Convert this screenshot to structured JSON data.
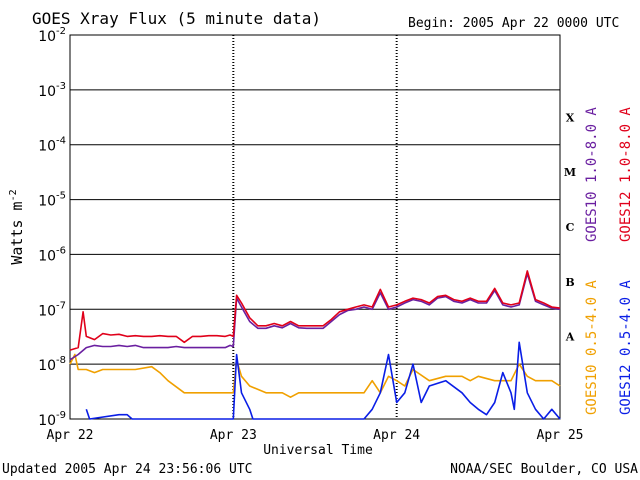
{
  "header": {
    "title": "GOES Xray Flux (5 minute data)",
    "begin": "Begin:  2005 Apr 22 0000 UTC"
  },
  "footer": {
    "updated": "Updated 2005 Apr 24 23:56:06 UTC",
    "credit": "NOAA/SEC Boulder, CO USA"
  },
  "colors": {
    "goes10_long": "#6a1fa0",
    "goes12_long": "#e0001a",
    "goes10_short": "#f0a000",
    "goes12_short": "#0a1ee6"
  },
  "chart_data": {
    "type": "line",
    "xlabel": "Universal Time",
    "ylabel": "Watts m-2",
    "x_unit": "days since 2005 Apr 22 0000 UTC",
    "xlim": [
      0,
      3
    ],
    "ylim": [
      1e-09,
      0.01
    ],
    "y_scale": "log",
    "grid": "horizontal lines at each decade; dotted vertical lines at day boundaries",
    "x_ticks": [
      "Apr 22",
      "Apr 23",
      "Apr 24",
      "Apr 25"
    ],
    "y_ticks": [
      {
        "base": "10",
        "exp": "-9"
      },
      {
        "base": "10",
        "exp": "-8"
      },
      {
        "base": "10",
        "exp": "-7"
      },
      {
        "base": "10",
        "exp": "-6"
      },
      {
        "base": "10",
        "exp": "-5"
      },
      {
        "base": "10",
        "exp": "-4"
      },
      {
        "base": "10",
        "exp": "-3"
      },
      {
        "base": "10",
        "exp": "-2"
      }
    ],
    "flare_classes": [
      "A",
      "B",
      "C",
      "M",
      "X"
    ],
    "legend_placement": "right, rotated vertical",
    "series": [
      {
        "name": "GOES10 1.0-8.0 A",
        "x": [
          0,
          0.05,
          0.1,
          0.15,
          0.2,
          0.25,
          0.3,
          0.35,
          0.4,
          0.45,
          0.5,
          0.55,
          0.6,
          0.65,
          0.7,
          0.75,
          0.8,
          0.85,
          0.9,
          0.95,
          0.98,
          1.0,
          1.02,
          1.05,
          1.1,
          1.15,
          1.2,
          1.25,
          1.3,
          1.35,
          1.4,
          1.45,
          1.5,
          1.55,
          1.6,
          1.65,
          1.7,
          1.75,
          1.8,
          1.85,
          1.9,
          1.95,
          2.0,
          2.05,
          2.1,
          2.15,
          2.2,
          2.25,
          2.3,
          2.35,
          2.4,
          2.45,
          2.5,
          2.55,
          2.6,
          2.65,
          2.7,
          2.75,
          2.8,
          2.85,
          2.9,
          2.95,
          3.0
        ],
        "values": [
          1.2e-08,
          1.5e-08,
          2e-08,
          2.2e-08,
          2.1e-08,
          2.1e-08,
          2.2e-08,
          2.1e-08,
          2.2e-08,
          2e-08,
          2e-08,
          2e-08,
          2e-08,
          2.1e-08,
          2e-08,
          2e-08,
          2e-08,
          2e-08,
          2e-08,
          2e-08,
          2.2e-08,
          2.1e-08,
          1.6e-07,
          1.1e-07,
          6e-08,
          4.5e-08,
          4.5e-08,
          5e-08,
          4.6e-08,
          5.5e-08,
          4.6e-08,
          4.5e-08,
          4.5e-08,
          4.5e-08,
          6e-08,
          8e-08,
          9.5e-08,
          1e-07,
          1.1e-07,
          1e-07,
          2e-07,
          1e-07,
          1.1e-07,
          1.3e-07,
          1.5e-07,
          1.4e-07,
          1.2e-07,
          1.6e-07,
          1.7e-07,
          1.4e-07,
          1.3e-07,
          1.5e-07,
          1.3e-07,
          1.3e-07,
          2.2e-07,
          1.2e-07,
          1.1e-07,
          1.2e-07,
          4.5e-07,
          1.4e-07,
          1.2e-07,
          1.05e-07,
          1e-07
        ]
      },
      {
        "name": "GOES12 1.0-8.0 A",
        "x": [
          0,
          0.05,
          0.08,
          0.1,
          0.15,
          0.2,
          0.25,
          0.3,
          0.35,
          0.4,
          0.45,
          0.5,
          0.55,
          0.6,
          0.65,
          0.7,
          0.75,
          0.8,
          0.85,
          0.9,
          0.95,
          0.98,
          1.0,
          1.02,
          1.05,
          1.1,
          1.15,
          1.2,
          1.25,
          1.3,
          1.35,
          1.4,
          1.45,
          1.5,
          1.55,
          1.6,
          1.65,
          1.7,
          1.75,
          1.8,
          1.85,
          1.9,
          1.95,
          2.0,
          2.05,
          2.1,
          2.15,
          2.2,
          2.25,
          2.3,
          2.35,
          2.4,
          2.45,
          2.5,
          2.55,
          2.6,
          2.65,
          2.7,
          2.75,
          2.8,
          2.85,
          2.9,
          2.95,
          3.0
        ],
        "values": [
          1.8e-08,
          2e-08,
          9e-08,
          3.2e-08,
          2.8e-08,
          3.6e-08,
          3.4e-08,
          3.5e-08,
          3.2e-08,
          3.3e-08,
          3.2e-08,
          3.2e-08,
          3.3e-08,
          3.2e-08,
          3.2e-08,
          2.5e-08,
          3.2e-08,
          3.2e-08,
          3.3e-08,
          3.3e-08,
          3.2e-08,
          3.4e-08,
          3.2e-08,
          1.8e-07,
          1.3e-07,
          7e-08,
          5e-08,
          5e-08,
          5.5e-08,
          5e-08,
          6e-08,
          5e-08,
          5e-08,
          5e-08,
          5e-08,
          6.5e-08,
          9e-08,
          1e-07,
          1.1e-07,
          1.2e-07,
          1.1e-07,
          2.3e-07,
          1.1e-07,
          1.2e-07,
          1.4e-07,
          1.6e-07,
          1.5e-07,
          1.3e-07,
          1.7e-07,
          1.8e-07,
          1.5e-07,
          1.4e-07,
          1.6e-07,
          1.4e-07,
          1.4e-07,
          2.4e-07,
          1.3e-07,
          1.2e-07,
          1.3e-07,
          5e-07,
          1.5e-07,
          1.3e-07,
          1.1e-07,
          1.05e-07
        ]
      },
      {
        "name": "GOES10 0.5-4.0 A",
        "x": [
          0,
          0.03,
          0.05,
          0.1,
          0.15,
          0.2,
          0.3,
          0.4,
          0.5,
          0.55,
          0.6,
          0.7,
          0.8,
          0.9,
          0.95,
          1.0,
          1.02,
          1.05,
          1.1,
          1.2,
          1.3,
          1.35,
          1.4,
          1.5,
          1.6,
          1.7,
          1.8,
          1.85,
          1.9,
          1.95,
          2.0,
          2.05,
          2.1,
          2.2,
          2.3,
          2.4,
          2.45,
          2.5,
          2.6,
          2.7,
          2.75,
          2.8,
          2.85,
          2.9,
          2.95,
          3.0
        ],
        "values": [
          1e-08,
          1.5e-08,
          8e-09,
          8e-09,
          7e-09,
          8e-09,
          8e-09,
          8e-09,
          9e-09,
          7e-09,
          5e-09,
          3e-09,
          3e-09,
          3e-09,
          3e-09,
          3e-09,
          1.2e-08,
          6e-09,
          4e-09,
          3e-09,
          3e-09,
          2.5e-09,
          3e-09,
          3e-09,
          3e-09,
          3e-09,
          3e-09,
          5e-09,
          3e-09,
          6e-09,
          5e-09,
          4e-09,
          8e-09,
          5e-09,
          6e-09,
          6e-09,
          5e-09,
          6e-09,
          5e-09,
          5e-09,
          1e-08,
          6e-09,
          5e-09,
          5e-09,
          5e-09,
          4e-09
        ]
      },
      {
        "name": "GOES12 0.5-4.0 A",
        "x": [
          0.1,
          0.12,
          0.3,
          0.35,
          0.38,
          1.0,
          1.02,
          1.05,
          1.1,
          1.12,
          1.8,
          1.85,
          1.9,
          1.95,
          2.0,
          2.05,
          2.1,
          2.15,
          2.2,
          2.3,
          2.4,
          2.45,
          2.5,
          2.55,
          2.6,
          2.65,
          2.7,
          2.72,
          2.75,
          2.8,
          2.85,
          2.9,
          2.95,
          3.0
        ],
        "values": [
          1.5e-09,
          1e-09,
          1.2e-09,
          1.2e-09,
          1e-09,
          1e-09,
          1.5e-08,
          3e-09,
          1.5e-09,
          1e-09,
          1e-09,
          1.5e-09,
          3e-09,
          1.5e-08,
          2e-09,
          3e-09,
          1e-08,
          2e-09,
          4e-09,
          5e-09,
          3e-09,
          2e-09,
          1.5e-09,
          1.2e-09,
          2e-09,
          7e-09,
          3e-09,
          1.5e-09,
          2.5e-08,
          3e-09,
          1.5e-09,
          1e-09,
          1.5e-09,
          1e-09
        ]
      }
    ]
  }
}
